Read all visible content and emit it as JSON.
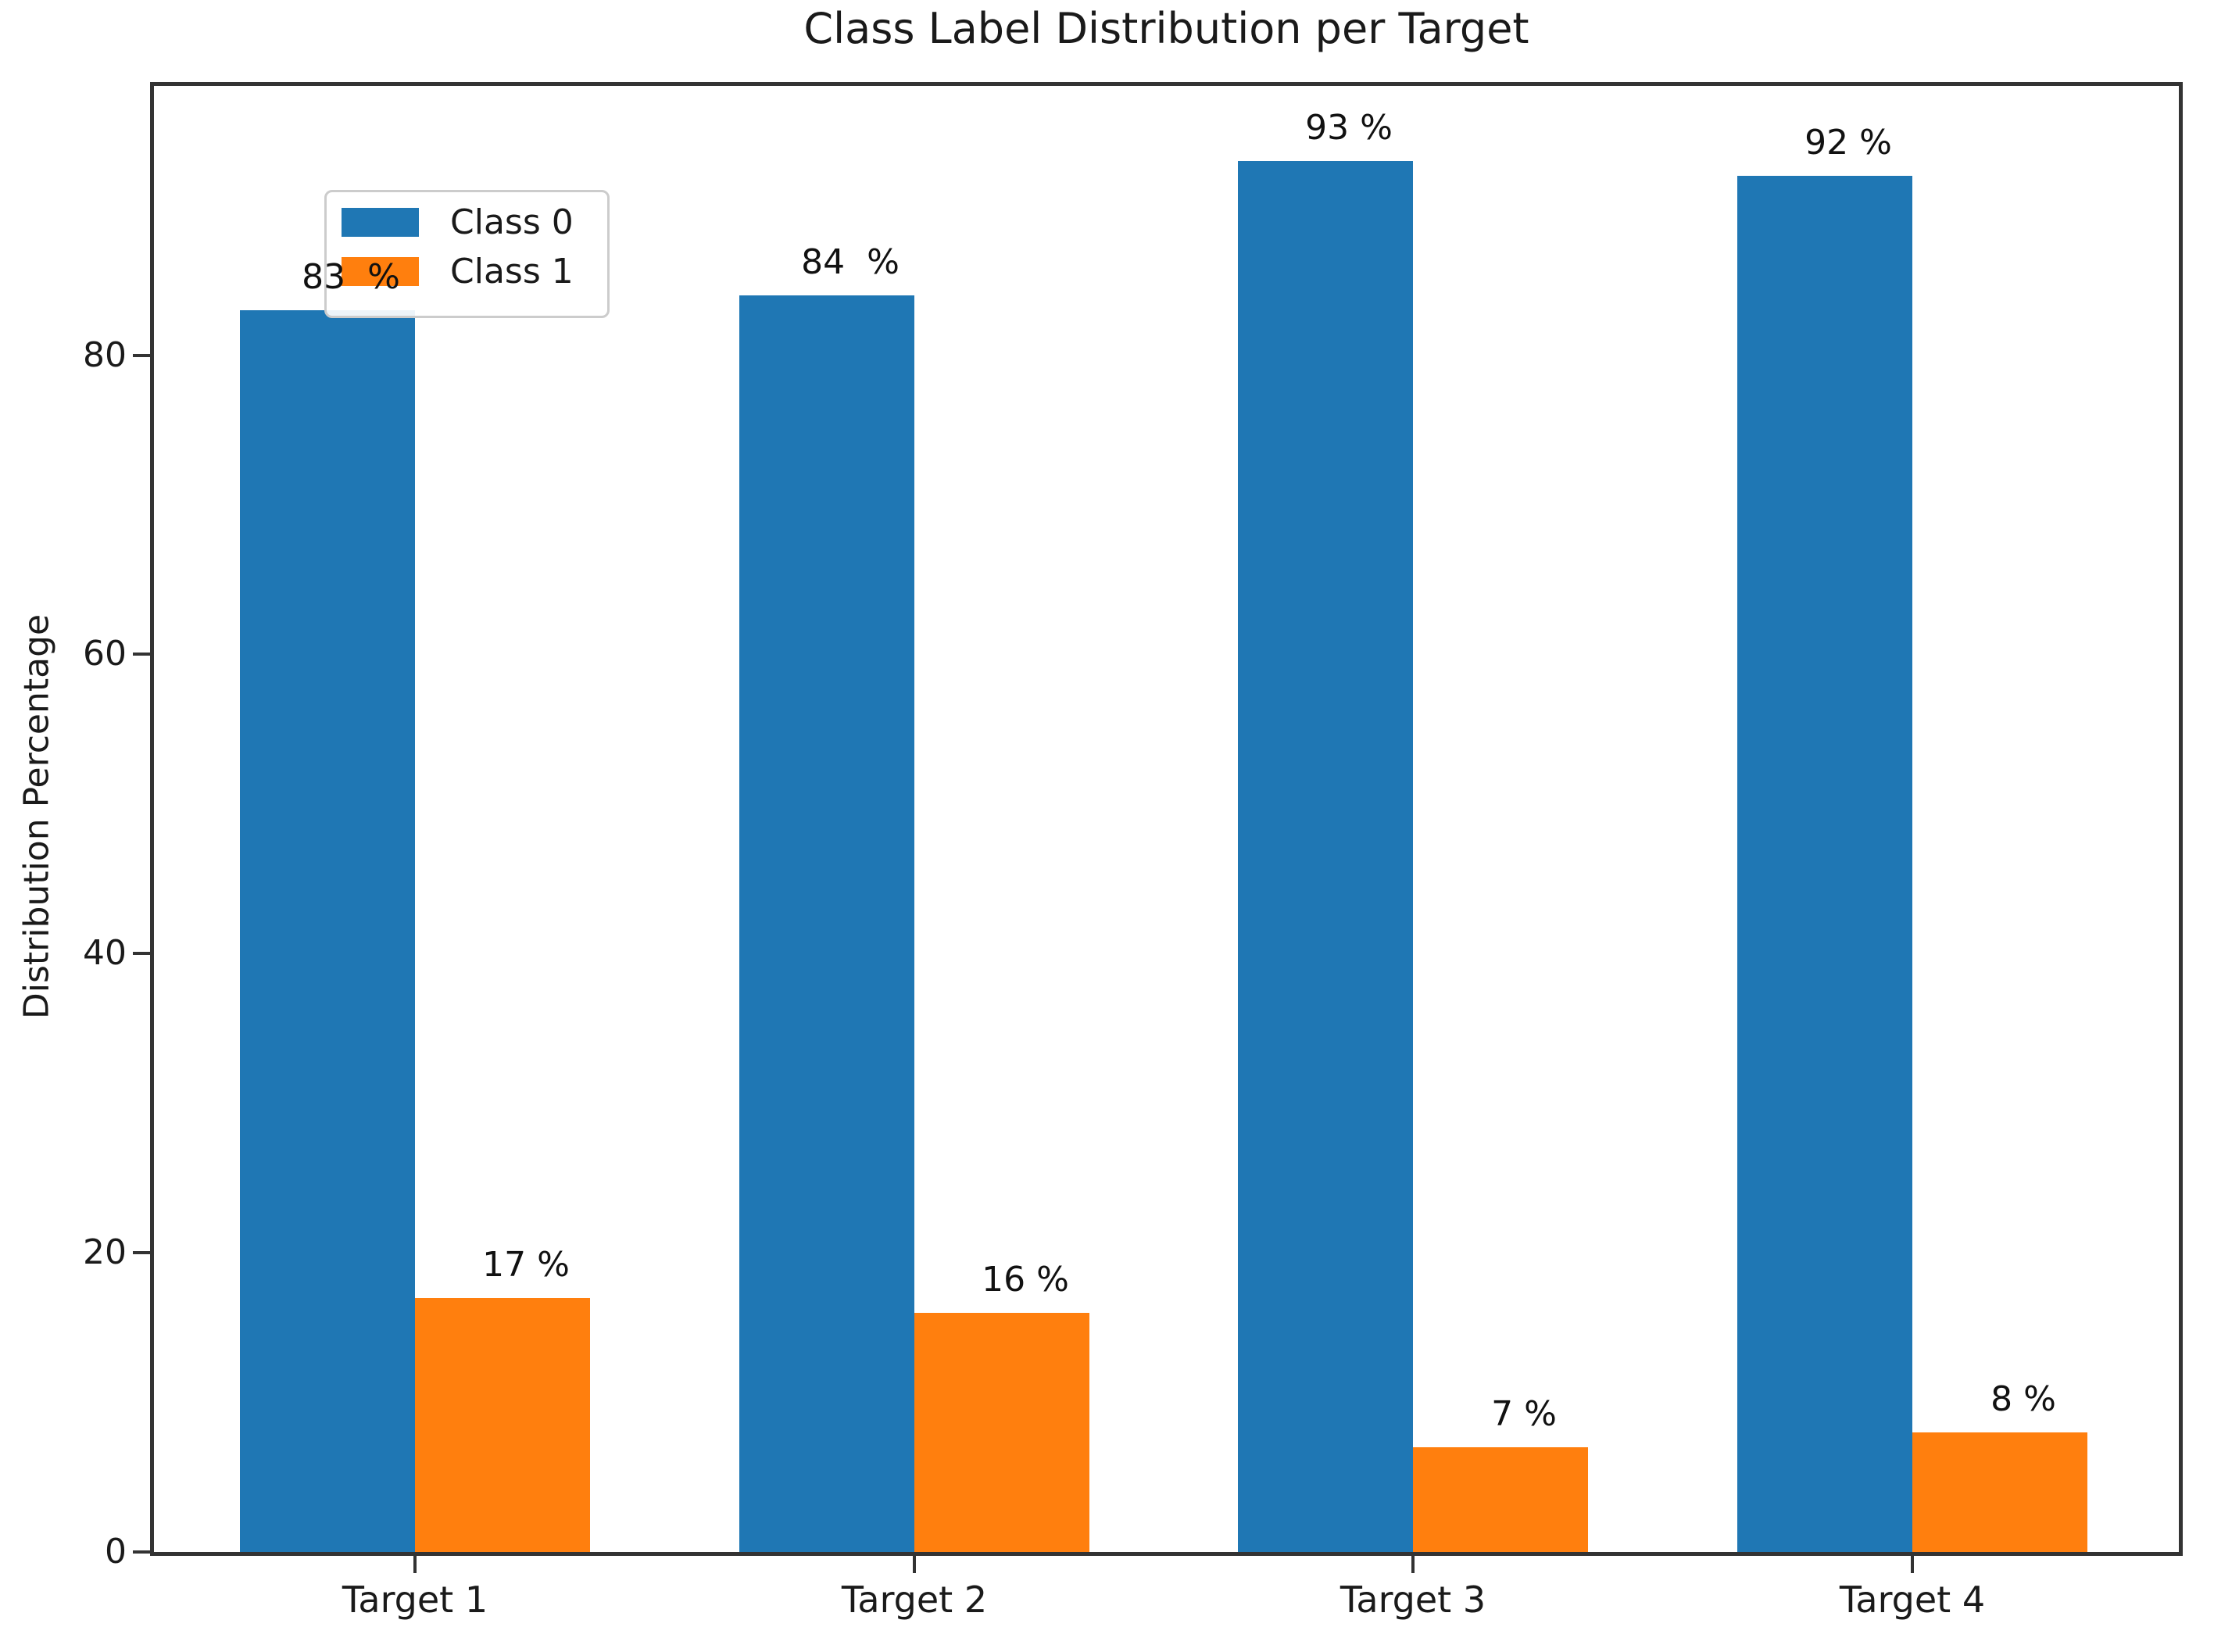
{
  "chart_data": {
    "type": "bar",
    "title": "Class Label Distribution per Target",
    "xlabel": "",
    "ylabel": "Distribution Percentage",
    "categories": [
      "Target 1",
      "Target 2",
      "Target 3",
      "Target 4"
    ],
    "series": [
      {
        "name": "Class 0",
        "color": "#1f77b4",
        "values": [
          83,
          84,
          93,
          92
        ],
        "value_labels": [
          "83  %",
          "84  %",
          "93 %",
          "92 %"
        ]
      },
      {
        "name": "Class 1",
        "color": "#ff7f0e",
        "values": [
          17,
          16,
          7,
          8
        ],
        "value_labels": [
          "17 %",
          "16 %",
          "7 %",
          "8 %"
        ]
      }
    ],
    "yticks": [
      0,
      20,
      40,
      60,
      80
    ],
    "ylim": [
      0,
      98
    ],
    "grid": false,
    "legend_position": "upper left",
    "axis_color": "#333333",
    "text_color": "#1a1a1a",
    "background_color": "#ffffff"
  }
}
